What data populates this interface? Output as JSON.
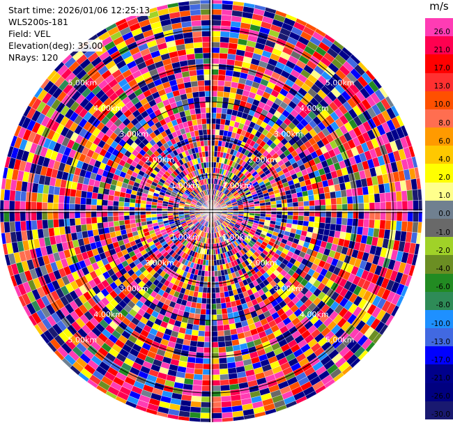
{
  "info": {
    "start_time": "Start time: 2026/01/06 12:25:13",
    "site": "WLS200s-181",
    "field": "Field: VEL",
    "elevation": "Elevation(deg): 35.00",
    "nrays": "NRays: 120"
  },
  "colorbar": {
    "unit": "m/s",
    "levels": [
      {
        "label": "26.0",
        "color": "#ff3cb4"
      },
      {
        "label": "21.0",
        "color": "#ff0050"
      },
      {
        "label": "17.0",
        "color": "#ff0000"
      },
      {
        "label": "13.0",
        "color": "#ff3030"
      },
      {
        "label": "10.0",
        "color": "#ff5000"
      },
      {
        "label": "8.0",
        "color": "#ff6e50"
      },
      {
        "label": "6.0",
        "color": "#ff9a00"
      },
      {
        "label": "4.0",
        "color": "#ffc800"
      },
      {
        "label": "2.0",
        "color": "#ffff00"
      },
      {
        "label": "1.0",
        "color": "#ffff8c"
      },
      {
        "label": "0.0",
        "color": "#708090"
      },
      {
        "label": "-1.0",
        "color": "#696969"
      },
      {
        "label": "-2.0",
        "color": "#a0d228"
      },
      {
        "label": "-4.0",
        "color": "#6b8e23"
      },
      {
        "label": "-6.0",
        "color": "#228b22"
      },
      {
        "label": "-8.0",
        "color": "#2e8b57"
      },
      {
        "label": "-10.0",
        "color": "#1e90ff"
      },
      {
        "label": "-13.0",
        "color": "#4169e1"
      },
      {
        "label": "-17.0",
        "color": "#0000ff"
      },
      {
        "label": "-21.0",
        "color": "#00008b"
      },
      {
        "label": "-26.0",
        "color": "#000080"
      },
      {
        "label": "-30.0",
        "color": "#191970"
      }
    ]
  },
  "chart_data": {
    "type": "heatmap",
    "subtype": "polar-ppi",
    "field": "VEL",
    "elevation_deg": 35.0,
    "nrays": 120,
    "range_ring_labels": [
      "1.00km",
      "2.00km",
      "3.00km",
      "4.00km",
      "5.00km"
    ],
    "range_rings_km": [
      1,
      2,
      3,
      4,
      5
    ],
    "max_range_km": 5.8,
    "data_description": "Velocities look noisy and mostly random across all colour classes, with many gates above 26 m/s (magenta) and below -26 m/s (navy)."
  }
}
